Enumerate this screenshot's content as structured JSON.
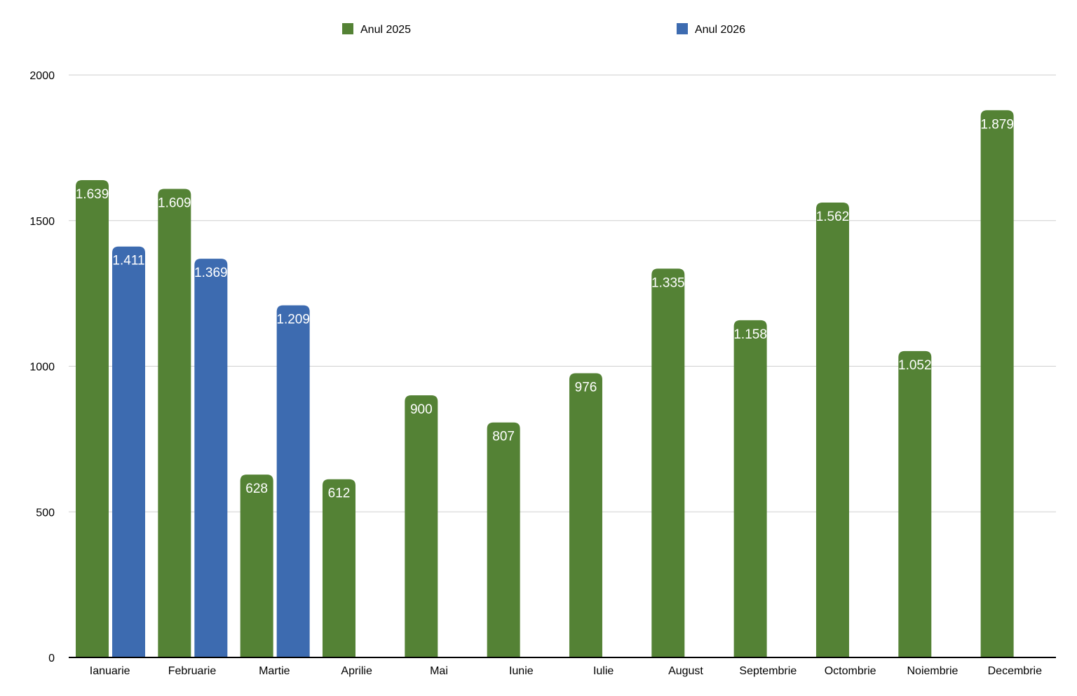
{
  "chart_data": {
    "type": "bar",
    "title": "",
    "xlabel": "",
    "ylabel": "",
    "categories": [
      "Ianuarie",
      "Februarie",
      "Martie",
      "Aprilie",
      "Mai",
      "Iunie",
      "Iulie",
      "August",
      "Septembrie",
      "Octombrie",
      "Noiembrie",
      "Decembrie"
    ],
    "series": [
      {
        "name": "Anul 2025",
        "color": "#548235",
        "values": [
          1639,
          1609,
          628,
          612,
          900,
          807,
          976,
          1335,
          1158,
          1562,
          1052,
          1879
        ],
        "labels": [
          "1.639",
          "1.609",
          "628",
          "612",
          "900",
          "807",
          "976",
          "1.335",
          "1.158",
          "1.562",
          "1.052",
          "1.879"
        ]
      },
      {
        "name": "Anul 2026",
        "color": "#3d6bb0",
        "values": [
          1411,
          1369,
          1209,
          null,
          null,
          null,
          null,
          null,
          null,
          null,
          null,
          null
        ],
        "labels": [
          "1.411",
          "1.369",
          "1.209",
          "",
          "",
          "",
          "",
          "",
          "",
          "",
          "",
          ""
        ]
      }
    ],
    "ylim": [
      0,
      2000
    ],
    "yticks": [
      0,
      500,
      1000,
      1500,
      2000
    ],
    "grid": true,
    "legend": "top"
  }
}
